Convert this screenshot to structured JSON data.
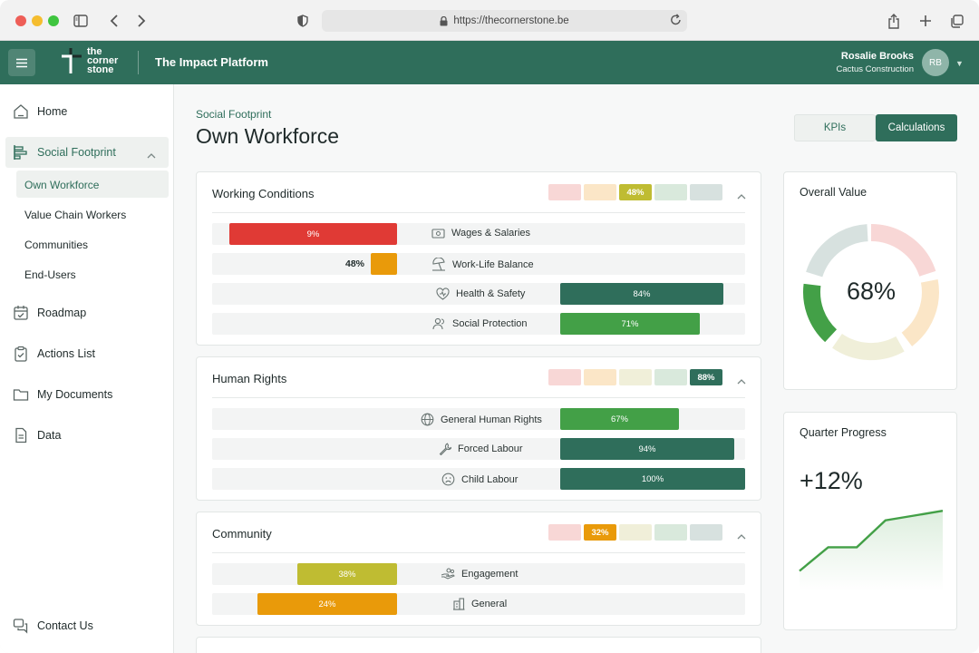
{
  "browser": {
    "url": "https://thecornerstone.be"
  },
  "appbar": {
    "logo_text": [
      "the",
      "corner",
      "stone"
    ],
    "title": "The Impact Platform",
    "user_name": "Rosalie Brooks",
    "user_company": "Cactus Construction",
    "avatar_initials": "RB"
  },
  "sidebar": {
    "home": "Home",
    "social_footprint": "Social Footprint",
    "sub_items": [
      "Own Workforce",
      "Value Chain Workers",
      "Communities",
      "End-Users"
    ],
    "roadmap": "Roadmap",
    "actions_list": "Actions List",
    "my_documents": "My Documents",
    "data": "Data",
    "contact_us": "Contact Us"
  },
  "page": {
    "breadcrumb": "Social Footprint",
    "title": "Own Workforce",
    "toggle_kpis": "KPIs",
    "toggle_calculations": "Calculations"
  },
  "colors": {
    "brand": "#2f6e5b",
    "red": "#e03a35",
    "orange": "#e99a0a",
    "olive": "#bfbc32",
    "green": "#43a047",
    "dark_green": "#2f6e5b",
    "chip_red": "#f8d7d6",
    "chip_orange": "#fbe6c7",
    "chip_olive": "#f0efd9",
    "chip_green": "#d9e9dc",
    "chip_teal": "#d7e1df"
  },
  "cards": [
    {
      "title": "Working Conditions",
      "score": "48%",
      "rows": [
        {
          "label": "Wages & Salaries",
          "value": "9%",
          "icon": "banknote-icon"
        },
        {
          "label": "Work-Life Balance",
          "value": "48%",
          "icon": "beach-umbrella-icon"
        },
        {
          "label": "Health & Safety",
          "value": "84%",
          "icon": "heart-shield-icon"
        },
        {
          "label": "Social Protection",
          "value": "71%",
          "icon": "people-icon"
        }
      ]
    },
    {
      "title": "Human Rights",
      "score": "88%",
      "rows": [
        {
          "label": "General Human Rights",
          "value": "67%",
          "icon": "globe-icon"
        },
        {
          "label": "Forced Labour",
          "value": "94%",
          "icon": "wrench-icon"
        },
        {
          "label": "Child Labour",
          "value": "100%",
          "icon": "sad-face-icon"
        }
      ]
    },
    {
      "title": "Community",
      "score": "32%",
      "rows": [
        {
          "label": "Engagement",
          "value": "38%",
          "icon": "hand-people-icon"
        },
        {
          "label": "General",
          "value": "24%",
          "icon": "building-icon"
        }
      ]
    }
  ],
  "overall": {
    "title": "Overall Value",
    "value": "68%"
  },
  "quarter": {
    "title": "Quarter Progress",
    "value": "+12%",
    "trend": [
      40,
      55,
      55,
      72,
      75,
      78
    ]
  }
}
